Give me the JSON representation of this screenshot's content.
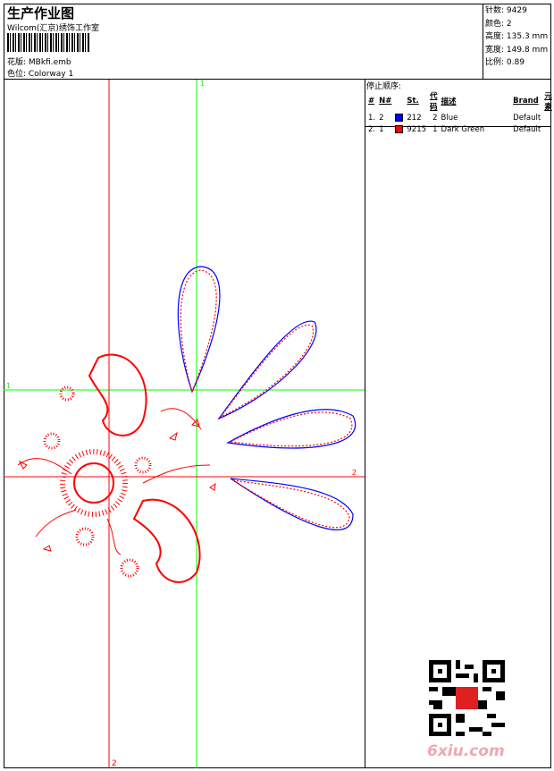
{
  "header": {
    "title": "生产作业图",
    "company": "Wilcom(汇京)绣饰工作室",
    "design_label": "花版:",
    "design_value": "MBkfi.emb",
    "colorway_label": "色位:",
    "colorway_value": "Colorway 1"
  },
  "info": [
    {
      "label": "针数:",
      "value": "9429"
    },
    {
      "label": "颜色:",
      "value": "2"
    },
    {
      "label": "高度:",
      "value": "135.3 mm"
    },
    {
      "label": "宽度:",
      "value": "149.8 mm"
    },
    {
      "label": "比例:",
      "value": "0.89"
    }
  ],
  "stop_sequence": {
    "title": "停止顺序:",
    "columns": [
      "#",
      "N#",
      "St.",
      "代码",
      "描述",
      "Brand",
      "元素"
    ],
    "rows": [
      {
        "num": "1.",
        "n": "2",
        "color": "#0000ff",
        "st": "212",
        "code": "2",
        "desc": "Blue",
        "brand": "Default"
      },
      {
        "num": "2.",
        "n": "1",
        "color": "#ff0000",
        "st": "9215",
        "code": "1",
        "desc": "Dark Green",
        "brand": "Default"
      }
    ]
  },
  "guides": {
    "green_v": "1",
    "green_h": "1",
    "red_h": "2",
    "red_v": "2",
    "green": "#00ff00",
    "red": "#ff0000"
  },
  "watermark": "6xiu.com"
}
